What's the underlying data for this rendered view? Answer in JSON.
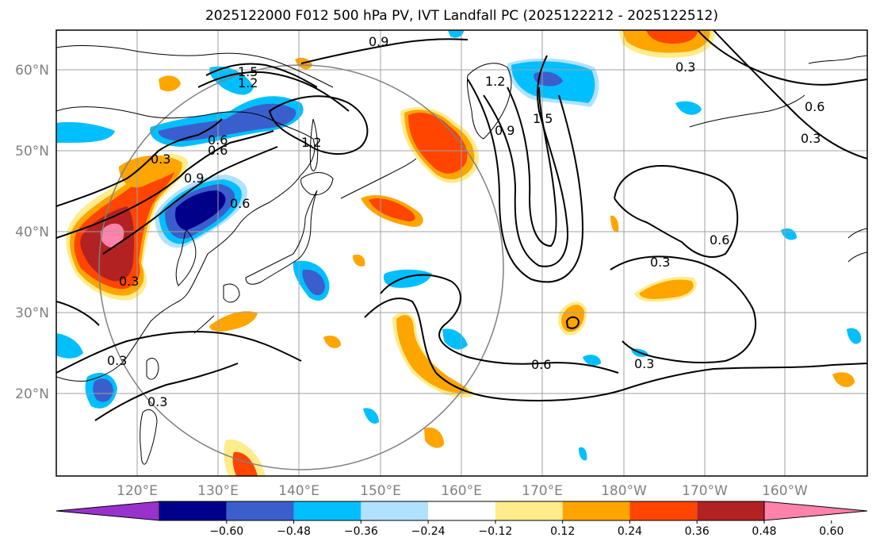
{
  "title": "2025122000 F012 500 hPa PV, IVT Landfall PC (2025122212 - 2025122512)",
  "latitude_labels": [
    "60°N",
    "50°N",
    "40°N",
    "30°N",
    "20°N"
  ],
  "longitude_labels": [
    "120°E",
    "130°E",
    "140°E",
    "150°E",
    "160°E",
    "170°E",
    "180°W",
    "170°W",
    "160°W"
  ],
  "colorbar": {
    "tick_labels": [
      "−0.60",
      "−0.48",
      "−0.36",
      "−0.24",
      "−0.12",
      "0.12",
      "0.24",
      "0.36",
      "0.48",
      "0.60"
    ],
    "colors": [
      "#9932cc",
      "#00008b",
      "#3a5fcd",
      "#00bfff",
      "#b0e2ff",
      "#ffffff",
      "#ffec8b",
      "#ffa500",
      "#ff4500",
      "#b22222",
      "#ff82ab"
    ]
  },
  "contour_labels": [
    "1.5",
    "1.2",
    "0.9",
    "0.6",
    "0.3"
  ]
}
